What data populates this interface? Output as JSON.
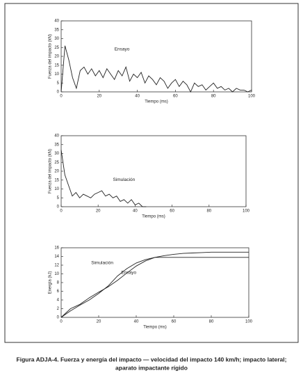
{
  "chart_data": [
    {
      "type": "line",
      "ylabel": "Fuerza del impacto (kN)",
      "xlabel": "Tiempo (ms)",
      "xlim": [
        0,
        100
      ],
      "ylim": [
        0,
        40
      ],
      "xticks": [
        0,
        20,
        40,
        60,
        80,
        100
      ],
      "yticks": [
        0,
        5,
        10,
        15,
        20,
        25,
        30,
        35,
        40
      ],
      "series": [
        {
          "name": "Ensayo",
          "color": "#222222",
          "x": [
            0,
            2,
            4,
            6,
            8,
            10,
            12,
            14,
            16,
            18,
            20,
            22,
            24,
            26,
            28,
            30,
            32,
            34,
            36,
            38,
            40,
            42,
            44,
            46,
            48,
            50,
            52,
            54,
            56,
            58,
            60,
            62,
            64,
            66,
            68,
            70,
            72,
            74,
            76,
            78,
            80,
            82,
            84,
            86,
            88,
            90,
            92,
            94,
            96,
            98,
            100
          ],
          "values": [
            0,
            26,
            18,
            8,
            2,
            12,
            14,
            10,
            13,
            9,
            12,
            8,
            13,
            10,
            7,
            12,
            9,
            14,
            6,
            10,
            8,
            11,
            5,
            9,
            7,
            4,
            8,
            6,
            2,
            5,
            7,
            3,
            6,
            4,
            0,
            5,
            3,
            4,
            1,
            3,
            5,
            2,
            3,
            1,
            2,
            0,
            2,
            1,
            1,
            0,
            1
          ]
        }
      ]
    },
    {
      "type": "line",
      "ylabel": "Fuerza del impacto (kN)",
      "xlabel": "Tiempo (ms)",
      "xlim": [
        0,
        100
      ],
      "ylim": [
        0,
        40
      ],
      "xticks": [
        0,
        20,
        40,
        60,
        80,
        100
      ],
      "yticks": [
        0,
        5,
        10,
        15,
        20,
        25,
        30,
        35,
        40
      ],
      "series": [
        {
          "name": "Simulación",
          "color": "#222222",
          "x": [
            0,
            2,
            4,
            6,
            8,
            10,
            12,
            14,
            16,
            18,
            20,
            22,
            24,
            26,
            28,
            30,
            32,
            34,
            36,
            38,
            40,
            42,
            44,
            46
          ],
          "values": [
            32,
            18,
            12,
            6,
            8,
            5,
            7,
            6,
            5,
            7,
            8,
            9,
            6,
            7,
            5,
            6,
            3,
            4,
            2,
            4,
            1,
            2,
            0,
            0
          ]
        }
      ]
    },
    {
      "type": "line",
      "ylabel": "Energía (kJ)",
      "xlabel": "Tiempo (ms)",
      "xlim": [
        0,
        100
      ],
      "ylim": [
        0,
        16
      ],
      "xticks": [
        0,
        20,
        40,
        60,
        80,
        100
      ],
      "yticks": [
        0,
        2,
        4,
        6,
        8,
        10,
        12,
        14,
        16
      ],
      "series": [
        {
          "name": "Simulación",
          "color": "#222222",
          "x": [
            0,
            5,
            10,
            15,
            20,
            25,
            30,
            35,
            40,
            45,
            50,
            55,
            60,
            65,
            70,
            75,
            80,
            85,
            90,
            95,
            100
          ],
          "values": [
            0,
            1.5,
            2.8,
            4,
            5.5,
            7.2,
            9.5,
            11.2,
            12.5,
            13.3,
            13.8,
            13.8,
            13.8,
            13.8,
            13.8,
            13.8,
            13.8,
            13.8,
            13.8,
            13.8,
            13.8
          ]
        },
        {
          "name": "Ensayo",
          "color": "#222222",
          "x": [
            0,
            5,
            10,
            15,
            20,
            25,
            30,
            35,
            40,
            45,
            50,
            55,
            60,
            65,
            70,
            75,
            80,
            85,
            90,
            95,
            100
          ],
          "values": [
            0,
            2,
            3,
            4.5,
            5.8,
            7,
            8.5,
            10.2,
            11.8,
            13,
            13.8,
            14.2,
            14.5,
            14.7,
            14.8,
            14.9,
            15,
            15,
            15,
            15,
            15
          ]
        }
      ]
    }
  ],
  "caption": [
    "Figura ADJA-4.   Fuerza y energía del impacto — velocidad del impacto 140 km/h; impacto lateral;",
    "aparato impactante rígido"
  ]
}
